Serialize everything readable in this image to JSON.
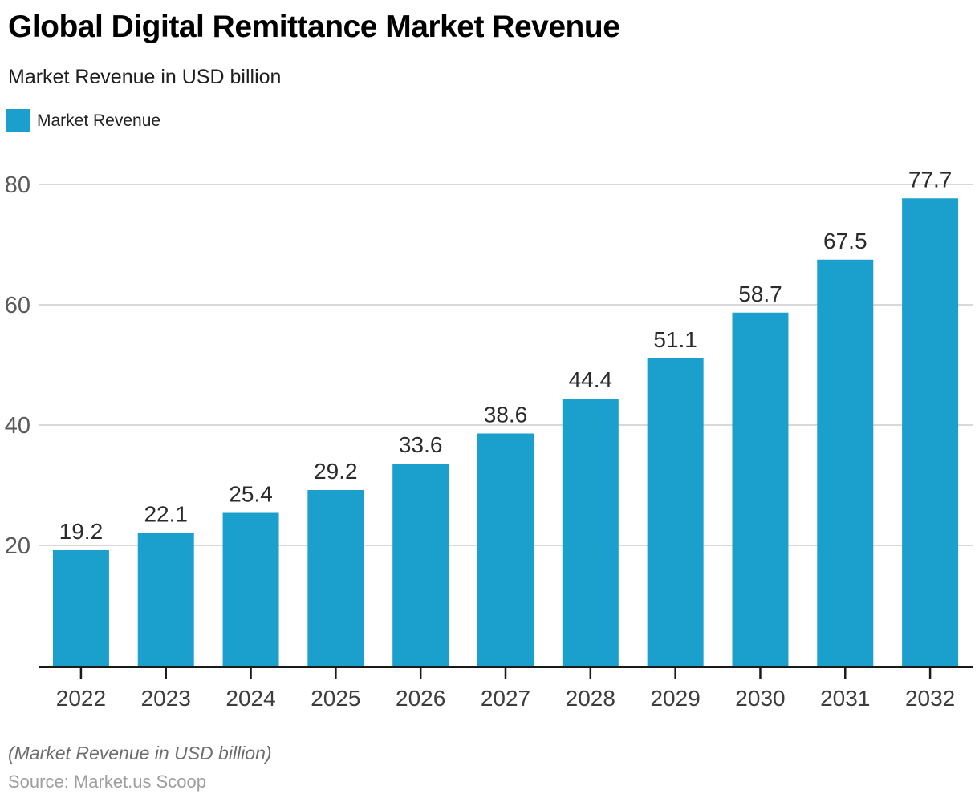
{
  "page": {
    "title": "Global Digital Remittance Market Revenue",
    "subtitle": "Market Revenue in USD billion",
    "footnote": "(Market Revenue in USD billion)",
    "source": "Source: Market.us Scoop"
  },
  "legend": {
    "label": "Market Revenue",
    "color": "#1ba0ce"
  },
  "chart_data": {
    "type": "bar",
    "title": "Global Digital Remittance Market Revenue",
    "subtitle": "Market Revenue in USD billion",
    "categories": [
      "2022",
      "2023",
      "2024",
      "2025",
      "2026",
      "2027",
      "2028",
      "2029",
      "2030",
      "2031",
      "2032"
    ],
    "series": [
      {
        "name": "Market Revenue",
        "values": [
          19.2,
          22.1,
          25.4,
          29.2,
          33.6,
          38.6,
          44.4,
          51.1,
          58.7,
          67.5,
          77.7
        ]
      }
    ],
    "xlabel": "",
    "ylabel": "",
    "ylim": [
      0,
      85
    ],
    "yticks": [
      20,
      40,
      60,
      80
    ],
    "grid": true,
    "legend_position": "top-left",
    "value_labels": true,
    "colors": {
      "bar": "#1ba0ce",
      "gridline": "#d9d9d9",
      "axis_line": "#1a1a1a",
      "ytick_label": "#58595b",
      "xtick_label": "#3d3d3d",
      "value_label": "#2b2b2b"
    }
  }
}
